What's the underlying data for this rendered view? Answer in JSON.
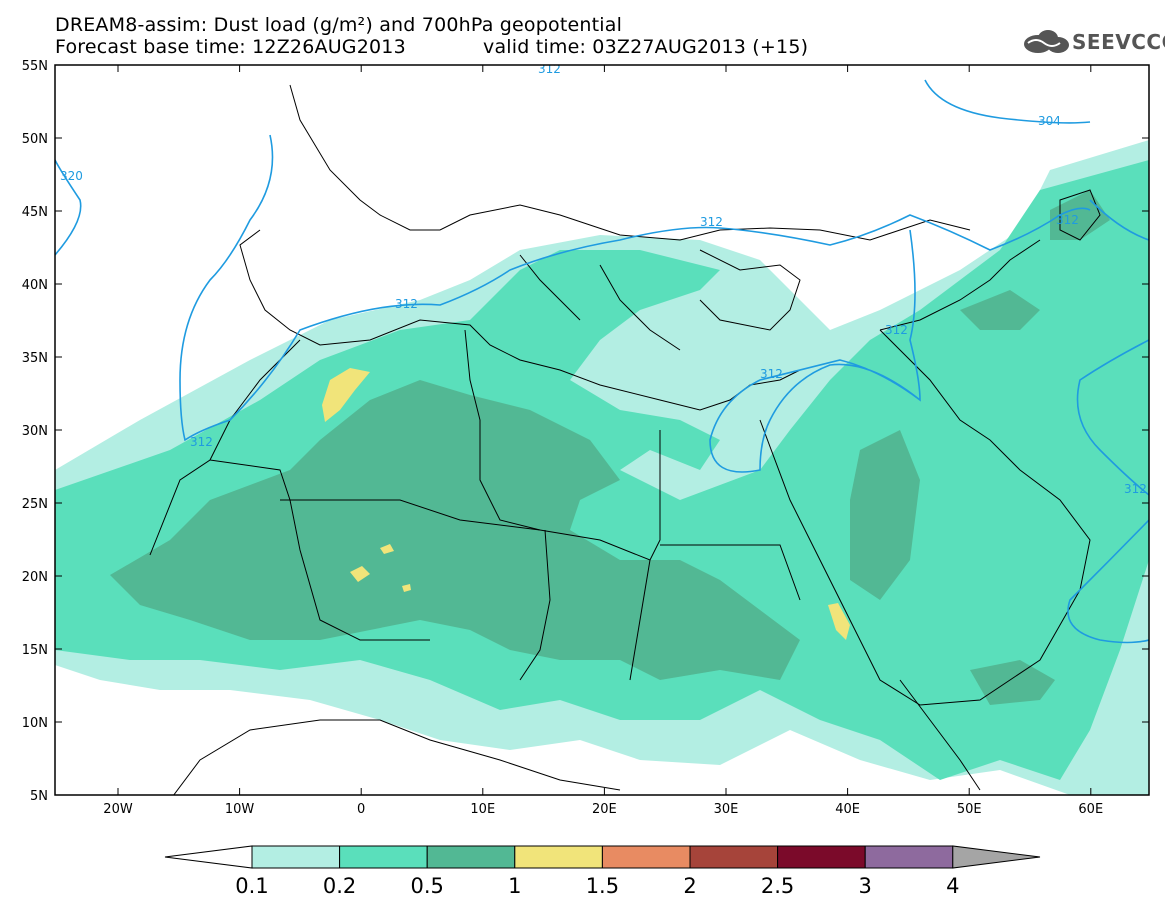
{
  "header": {
    "title_line1": "DREAM8-assim: Dust load (g/m²) and 700hPa geopotential",
    "title_line2_left": "Forecast base time: 12Z26AUG2013",
    "title_line2_right": "valid time: 03Z27AUG2013 (+15)",
    "logo_text": "SEEVCCC"
  },
  "map": {
    "lat_labels": [
      "55N",
      "50N",
      "45N",
      "40N",
      "35N",
      "30N",
      "25N",
      "20N",
      "15N",
      "10N",
      "5N"
    ],
    "lon_labels": [
      "20W",
      "10W",
      "0",
      "10E",
      "20E",
      "30E",
      "40E",
      "50E",
      "60E"
    ],
    "contour_labels": [
      "312",
      "312",
      "312",
      "312",
      "312",
      "312",
      "304",
      "320",
      "312"
    ]
  },
  "colorbar": {
    "ticks": [
      "0.1",
      "0.2",
      "0.5",
      "1",
      "1.5",
      "2",
      "2.5",
      "3",
      "4"
    ],
    "colors": [
      "#ffffff",
      "#b3eee3",
      "#5adfbb",
      "#52b894",
      "#f1e47a",
      "#e88b62",
      "#a6443a",
      "#7b0a2a",
      "#8e6a9e",
      "#a5a5a5"
    ]
  }
}
